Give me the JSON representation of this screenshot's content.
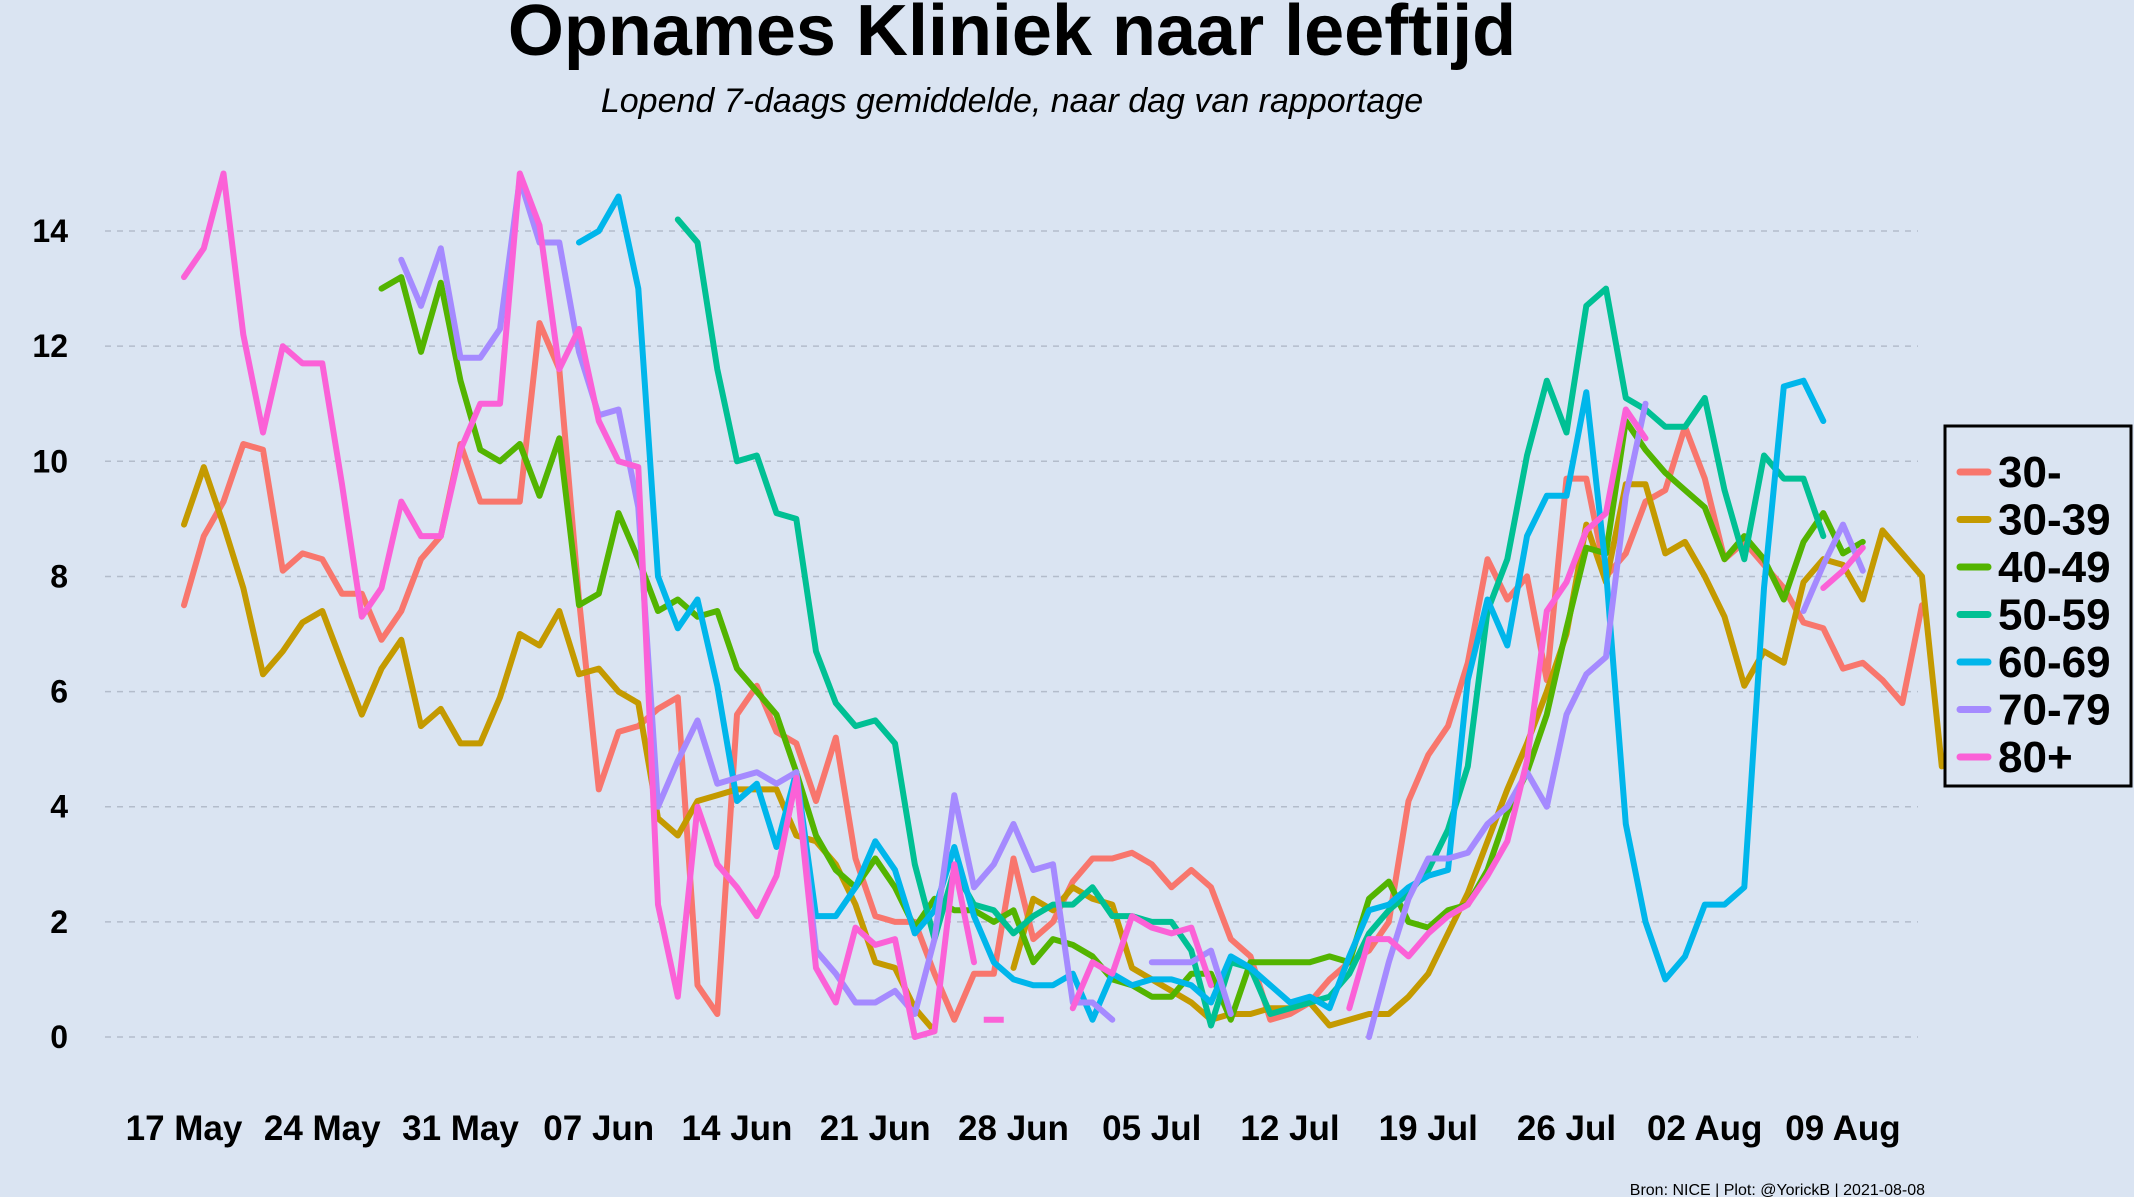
{
  "chart_data": {
    "type": "line",
    "title": "Opnames Kliniek naar leeftijd",
    "subtitle": "Lopend 7-daags gemiddelde, naar dag van rapportage",
    "caption": "Bron: NICE | Plot: @YorickB  |  2021-08-08",
    "xlabel": "",
    "ylabel": "",
    "ylim": [
      0,
      15
    ],
    "yticks": [
      0,
      2,
      4,
      6,
      8,
      10,
      12,
      14
    ],
    "x_start": "2021-05-17",
    "xticks": [
      "17 May",
      "24 May",
      "31 May",
      "07 Jun",
      "14 Jun",
      "21 Jun",
      "28 Jun",
      "05 Jul",
      "12 Jul",
      "19 Jul",
      "26 Jul",
      "02 Aug",
      "09 Aug"
    ],
    "grid": "horizontal dashed",
    "legend_position": "right",
    "series": [
      {
        "name": "30-",
        "color": "#f8766d",
        "values": [
          7.5,
          8.7,
          9.3,
          10.3,
          10.2,
          8.1,
          8.4,
          8.3,
          7.7,
          7.7,
          6.9,
          7.4,
          8.3,
          8.7,
          10.3,
          9.3,
          9.3,
          9.3,
          12.4,
          11.6,
          7.6,
          4.3,
          5.3,
          5.4,
          5.7,
          5.9,
          0.9,
          0.4,
          5.6,
          6.1,
          5.3,
          5.1,
          4.1,
          5.2,
          3.1,
          2.1,
          2.0,
          2.0,
          1.1,
          0.3,
          1.1,
          1.1,
          3.1,
          1.7,
          2.0,
          2.7,
          3.1,
          3.1,
          3.2,
          3.0,
          2.6,
          2.9,
          2.6,
          1.7,
          1.4,
          0.3,
          0.4,
          0.6,
          1.0,
          1.3,
          1.5,
          2.0,
          4.1,
          4.9,
          5.4,
          6.5,
          8.3,
          7.6,
          8.0,
          6.2,
          9.7,
          9.7,
          8.0,
          8.4,
          9.3,
          9.5,
          10.6,
          9.7,
          8.3,
          8.6,
          8.2,
          7.8,
          7.2,
          7.1,
          6.4,
          6.5,
          6.2,
          5.8,
          7.5
        ]
      },
      {
        "name": "30-39",
        "color": "#c49a00",
        "values": [
          8.9,
          9.9,
          8.9,
          7.8,
          6.3,
          6.7,
          7.2,
          7.4,
          6.5,
          5.6,
          6.4,
          6.9,
          5.4,
          5.7,
          5.1,
          5.1,
          5.9,
          7.0,
          6.8,
          7.4,
          6.3,
          6.4,
          6.0,
          5.8,
          3.8,
          3.5,
          4.1,
          4.2,
          4.3,
          4.3,
          4.3,
          3.5,
          3.4,
          3.0,
          2.3,
          1.3,
          1.2,
          0.5,
          0.1,
          null,
          null,
          null,
          1.2,
          2.4,
          2.2,
          2.6,
          2.4,
          2.3,
          1.2,
          1.0,
          0.8,
          0.6,
          0.3,
          0.4,
          0.4,
          0.5,
          0.5,
          0.6,
          0.2,
          0.3,
          0.4,
          0.4,
          0.7,
          1.1,
          1.8,
          2.5,
          3.4,
          4.3,
          5.1,
          6.0,
          7.0,
          8.9,
          7.9,
          9.6,
          9.6,
          8.4,
          8.6,
          8.0,
          7.3,
          6.1,
          6.7,
          6.5,
          7.9,
          8.3,
          8.2,
          7.6,
          8.8,
          8.4,
          8.0,
          4.7
        ]
      },
      {
        "name": "40-49",
        "color": "#53b400",
        "values": [
          null,
          null,
          null,
          null,
          null,
          null,
          null,
          null,
          null,
          null,
          13.0,
          13.2,
          11.9,
          13.1,
          11.4,
          10.2,
          10.0,
          10.3,
          9.4,
          10.4,
          7.5,
          7.7,
          9.1,
          8.3,
          7.4,
          7.6,
          7.3,
          7.4,
          6.4,
          6.0,
          5.6,
          4.6,
          3.5,
          2.9,
          2.6,
          3.1,
          2.6,
          1.9,
          2.4,
          2.2,
          2.2,
          2.0,
          2.2,
          1.3,
          1.7,
          1.6,
          1.4,
          1.0,
          0.9,
          0.7,
          0.7,
          1.1,
          1.1,
          0.3,
          1.3,
          1.3,
          1.3,
          1.3,
          1.4,
          1.3,
          2.4,
          2.7,
          2.0,
          1.9,
          2.2,
          2.3,
          2.9,
          3.9,
          4.6,
          5.6,
          7.1,
          8.5,
          8.4,
          10.7,
          10.2,
          9.8,
          9.5,
          9.2,
          8.3,
          8.7,
          8.3,
          7.6,
          8.6,
          9.1,
          8.4,
          8.6
        ]
      },
      {
        "name": "50-59",
        "color": "#00c094",
        "values": [
          null,
          null,
          null,
          null,
          null,
          null,
          null,
          null,
          null,
          null,
          null,
          null,
          null,
          null,
          null,
          null,
          null,
          null,
          null,
          null,
          null,
          null,
          null,
          null,
          null,
          14.2,
          13.8,
          11.6,
          10.0,
          10.1,
          9.1,
          9.0,
          6.7,
          5.8,
          5.4,
          5.5,
          5.1,
          3.0,
          1.7,
          2.9,
          2.3,
          2.2,
          1.8,
          2.1,
          2.3,
          2.3,
          2.6,
          2.1,
          2.1,
          2.0,
          2.0,
          1.5,
          0.2,
          1.3,
          1.2,
          0.4,
          0.5,
          0.6,
          0.7,
          1.1,
          1.8,
          2.2,
          2.5,
          2.9,
          3.6,
          4.7,
          7.4,
          8.3,
          10.1,
          11.4,
          10.5,
          12.7,
          13.0,
          11.1,
          10.9,
          10.6,
          10.6,
          11.1,
          9.5,
          8.3,
          10.1,
          9.7,
          9.7,
          8.7
        ]
      },
      {
        "name": "60-69",
        "color": "#00b6eb",
        "values": [
          null,
          null,
          null,
          null,
          null,
          null,
          null,
          null,
          null,
          null,
          null,
          null,
          null,
          null,
          null,
          null,
          null,
          null,
          null,
          null,
          13.8,
          14.0,
          14.6,
          13.0,
          8.0,
          7.1,
          7.6,
          6.1,
          4.1,
          4.4,
          3.3,
          4.6,
          2.1,
          2.1,
          2.6,
          3.4,
          2.9,
          1.8,
          2.2,
          3.3,
          2.1,
          1.3,
          1.0,
          0.9,
          0.9,
          1.1,
          0.3,
          1.1,
          0.9,
          1.0,
          1.0,
          0.9,
          0.6,
          1.4,
          1.2,
          0.9,
          0.6,
          0.7,
          0.5,
          1.4,
          2.2,
          2.3,
          2.6,
          2.8,
          2.9,
          6.2,
          7.6,
          6.8,
          8.7,
          9.4,
          9.4,
          11.2,
          8.1,
          3.7,
          2.0,
          1.0,
          1.4,
          2.3,
          2.3,
          2.6,
          7.8,
          11.3,
          11.4,
          10.7
        ]
      },
      {
        "name": "70-79",
        "color": "#a58aff",
        "values": [
          null,
          null,
          null,
          null,
          null,
          null,
          null,
          null,
          null,
          null,
          null,
          13.5,
          12.7,
          13.7,
          11.8,
          11.8,
          12.3,
          14.9,
          13.8,
          13.8,
          11.9,
          10.8,
          10.9,
          9.2,
          4.0,
          4.8,
          5.5,
          4.4,
          4.5,
          4.6,
          4.4,
          4.6,
          1.5,
          1.1,
          0.6,
          0.6,
          0.8,
          0.4,
          1.7,
          4.2,
          2.6,
          3.0,
          3.7,
          2.9,
          3.0,
          0.6,
          0.6,
          0.3,
          null,
          1.3,
          1.3,
          1.3,
          1.5,
          0.4,
          null,
          null,
          null,
          null,
          null,
          null,
          0.0,
          1.3,
          2.4,
          3.1,
          3.1,
          3.2,
          3.7,
          4.0,
          4.6,
          4.0,
          5.6,
          6.3,
          6.6,
          9.4,
          11.0,
          null,
          null,
          null,
          null,
          null,
          null,
          null,
          7.4,
          8.2,
          8.9,
          8.1
        ]
      },
      {
        "name": "80+",
        "color": "#fb61d7",
        "values": [
          13.2,
          13.7,
          15.0,
          12.2,
          10.5,
          12.0,
          11.7,
          11.7,
          9.6,
          7.3,
          7.8,
          9.3,
          8.7,
          8.7,
          10.2,
          11.0,
          11.0,
          15.0,
          14.1,
          11.6,
          12.3,
          10.7,
          10.0,
          9.9,
          2.3,
          0.7,
          4.0,
          3.0,
          2.6,
          2.1,
          2.8,
          4.5,
          1.2,
          0.6,
          1.9,
          1.6,
          1.7,
          0.0,
          0.1,
          3.0,
          1.3,
          null,
          0.3,
          null,
          null,
          0.5,
          1.3,
          1.1,
          2.1,
          1.9,
          1.8,
          1.9,
          0.9,
          null,
          null,
          null,
          null,
          null,
          null,
          0.5,
          1.7,
          1.7,
          1.4,
          1.8,
          2.1,
          2.3,
          2.8,
          3.4,
          4.8,
          7.4,
          7.9,
          8.8,
          9.1,
          10.9,
          10.4,
          null,
          null,
          null,
          null,
          null,
          null,
          null,
          null,
          7.8,
          8.1,
          8.5
        ]
      }
    ]
  }
}
